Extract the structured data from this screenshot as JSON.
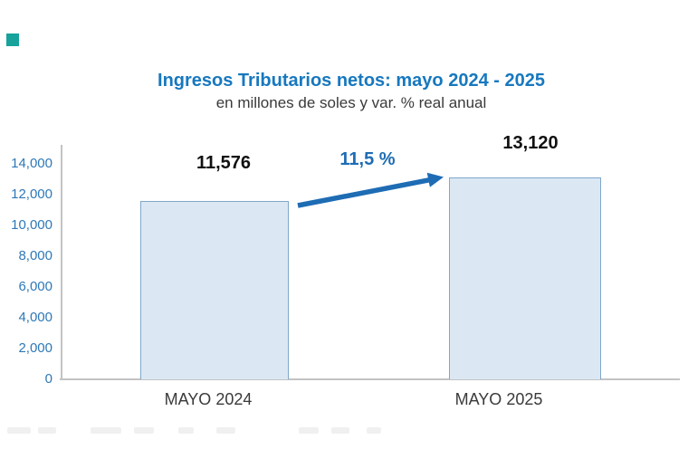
{
  "colors": {
    "title-blue": "#1778bf",
    "tick-blue": "#2e78b8",
    "arrow-blue": "#1e6cb4",
    "bar-fill": "#dbe8f4",
    "bar-border": "#7fa8c9",
    "axis-gray": "#c3c3c3",
    "text-dark": "#3a3a3a",
    "value-black": "#111111",
    "teal-accent": "#17a29b",
    "smudge-gray": "#f0f0f0"
  },
  "chart_data": {
    "type": "bar",
    "title": "Ingresos Tributarios netos: mayo 2024 - 2025",
    "subtitle": "en millones de soles y var. % real anual",
    "categories": [
      "MAYO 2024",
      "MAYO 2025"
    ],
    "values": [
      11576,
      13120
    ],
    "value_labels": [
      "11,576",
      "13,120"
    ],
    "growth_label": "11,5 %",
    "xlabel": "",
    "ylabel": "",
    "ylim": [
      0,
      14000
    ],
    "ytick_step": 2000,
    "yticks": [
      "0",
      "2,000",
      "4,000",
      "6,000",
      "8,000",
      "10,000",
      "12,000",
      "14,000"
    ],
    "grid": false,
    "legend_position": "none"
  }
}
